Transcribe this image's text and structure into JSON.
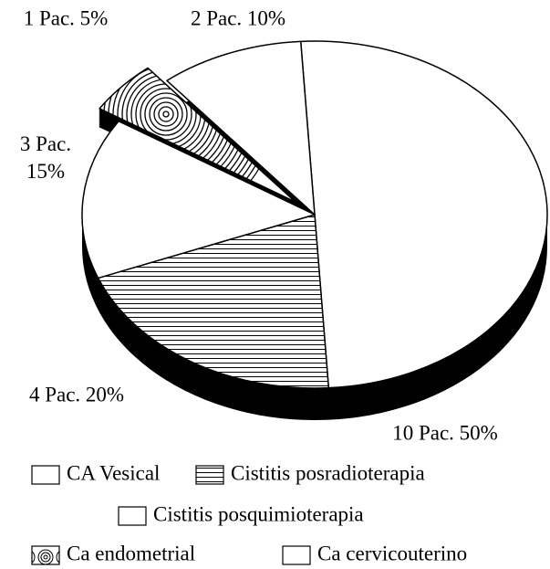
{
  "chart_data": {
    "type": "pie",
    "categories": [
      "CA Vesical",
      "Cistitis posradioterapia",
      "Cistitis posquimioterapia",
      "Ca endometrial",
      "Ca cervicouterino"
    ],
    "values": [
      50,
      20,
      15,
      5,
      10
    ],
    "value_labels": [
      "10 Pac. 50%",
      "4 Pac. 20%",
      "3 Pac.\n15%",
      "1 Pac. 5%",
      "2 Pac. 10%"
    ]
  }
}
